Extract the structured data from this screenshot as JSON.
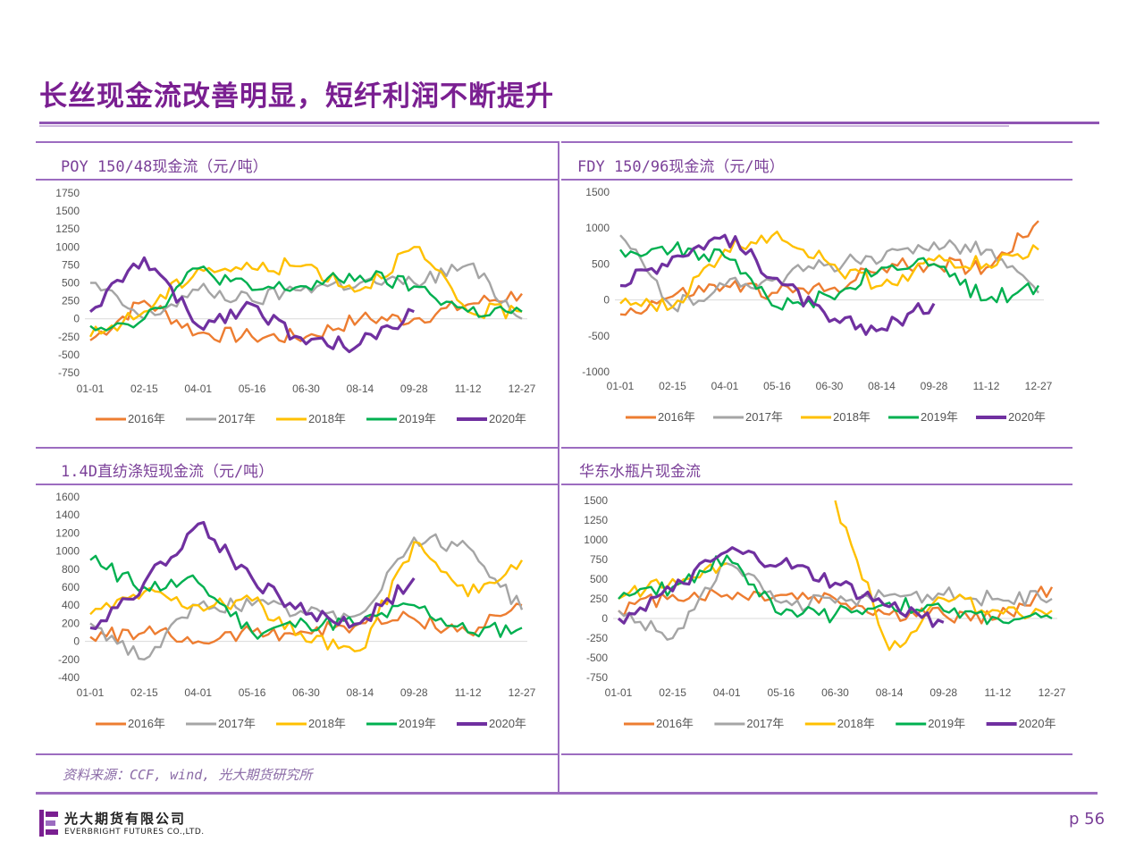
{
  "page": {
    "title": "长丝现金流改善明显，短纤利润不断提升",
    "source": "资料来源：CCF, wind, 光大期货研究所",
    "company_cn": "光大期货有限公司",
    "company_en": "EVERBRIGHT FUTURES CO.,LTD.",
    "page_number": "p 56",
    "accent_color": "#7a1f91"
  },
  "chart_data": [
    {
      "type": "line",
      "title": "POY 150/48现金流（元/吨）",
      "categories": [
        "01-01",
        "02-15",
        "04-01",
        "05-16",
        "06-30",
        "08-14",
        "09-28",
        "11-12",
        "12-27"
      ],
      "yticks": [
        1750,
        1500,
        1250,
        1000,
        750,
        500,
        250,
        0,
        -250,
        -500,
        -750
      ],
      "ylim": [
        -750,
        1750
      ],
      "legend_position": "bottom",
      "series": [
        {
          "name": "2016年",
          "color": "#ed7d31",
          "values": [
            -300,
            250,
            -200,
            -250,
            -250,
            0,
            0,
            200,
            350
          ]
        },
        {
          "name": "2017年",
          "color": "#a5a5a5",
          "values": [
            500,
            0,
            400,
            250,
            450,
            500,
            500,
            750,
            0
          ]
        },
        {
          "name": "2018年",
          "color": "#ffc000",
          "values": [
            -250,
            100,
            700,
            700,
            750,
            400,
            1000,
            100,
            100
          ]
        },
        {
          "name": "2019年",
          "color": "#00b050",
          "values": [
            -100,
            0,
            700,
            400,
            450,
            600,
            450,
            100,
            100
          ]
        },
        {
          "name": "2020年",
          "color": "#7030a0",
          "values": [
            100,
            850,
            -100,
            200,
            -350,
            -350,
            100,
            null,
            null
          ]
        }
      ]
    },
    {
      "type": "line",
      "title": "FDY 150/96现金流（元/吨）",
      "categories": [
        "01-01",
        "02-15",
        "04-01",
        "05-16",
        "06-30",
        "08-14",
        "09-28",
        "11-12",
        "12-27"
      ],
      "yticks": [
        1500,
        1000,
        500,
        0,
        -500,
        -1000
      ],
      "ylim": [
        -1000,
        1500
      ],
      "legend_position": "bottom",
      "series": [
        {
          "name": "2016年",
          "color": "#ed7d31",
          "values": [
            -200,
            50,
            200,
            100,
            150,
            450,
            500,
            450,
            1100
          ]
        },
        {
          "name": "2017年",
          "color": "#a5a5a5",
          "values": [
            900,
            -100,
            200,
            300,
            500,
            550,
            800,
            700,
            100
          ]
        },
        {
          "name": "2018年",
          "color": "#ffc000",
          "values": [
            -50,
            -100,
            700,
            950,
            500,
            200,
            550,
            500,
            700
          ]
        },
        {
          "name": "2019年",
          "color": "#00b050",
          "values": [
            700,
            700,
            600,
            -100,
            50,
            450,
            500,
            0,
            200
          ]
        },
        {
          "name": "2020年",
          "color": "#7030a0",
          "values": [
            200,
            600,
            900,
            300,
            -300,
            -400,
            -50,
            null,
            null
          ]
        }
      ]
    },
    {
      "type": "line",
      "title": "1.4D直纺涤短现金流（元/吨）",
      "categories": [
        "01-01",
        "02-15",
        "04-01",
        "05-16",
        "06-30",
        "08-14",
        "09-28",
        "11-12",
        "12-27"
      ],
      "yticks": [
        1600,
        1400,
        1200,
        1000,
        800,
        600,
        400,
        200,
        0,
        -200,
        -400
      ],
      "ylim": [
        -400,
        1600
      ],
      "legend_position": "bottom",
      "series": [
        {
          "name": "2016年",
          "color": "#ed7d31",
          "values": [
            50,
            100,
            0,
            100,
            100,
            200,
            250,
            100,
            400
          ]
        },
        {
          "name": "2017年",
          "color": "#a5a5a5",
          "values": [
            200,
            -200,
            400,
            400,
            300,
            300,
            1150,
            1050,
            350
          ]
        },
        {
          "name": "2018年",
          "color": "#ffc000",
          "values": [
            300,
            550,
            400,
            450,
            0,
            -100,
            1100,
            500,
            900
          ]
        },
        {
          "name": "2019年",
          "color": "#00b050",
          "values": [
            900,
            600,
            650,
            100,
            200,
            200,
            400,
            100,
            150
          ]
        },
        {
          "name": "2020年",
          "color": "#7030a0",
          "values": [
            150,
            650,
            1300,
            700,
            300,
            200,
            700,
            null,
            null
          ]
        }
      ]
    },
    {
      "type": "line",
      "title": "华东水瓶片现金流",
      "categories": [
        "01-01",
        "02-15",
        "04-01",
        "05-16",
        "06-30",
        "08-14",
        "09-28",
        "11-12",
        "12-27"
      ],
      "yticks": [
        1500,
        1250,
        1000,
        750,
        500,
        250,
        0,
        -250,
        -500,
        -750
      ],
      "ylim": [
        -750,
        1500
      ],
      "legend_position": "bottom",
      "series": [
        {
          "name": "2016年",
          "color": "#ed7d31",
          "values": [
            100,
            300,
            300,
            300,
            250,
            50,
            50,
            0,
            400
          ]
        },
        {
          "name": "2017年",
          "color": "#a5a5a5",
          "values": [
            100,
            -250,
            700,
            200,
            200,
            300,
            300,
            250,
            250
          ]
        },
        {
          "name": "2018年",
          "color": "#ffc000",
          "values": [
            250,
            500,
            700,
            null,
            1500,
            -400,
            250,
            100,
            100
          ]
        },
        {
          "name": "2019年",
          "color": "#00b050",
          "values": [
            250,
            400,
            800,
            50,
            50,
            200,
            100,
            0,
            0
          ]
        },
        {
          "name": "2020年",
          "color": "#7030a0",
          "values": [
            0,
            350,
            850,
            700,
            450,
            150,
            -50,
            null,
            null
          ]
        }
      ]
    }
  ]
}
